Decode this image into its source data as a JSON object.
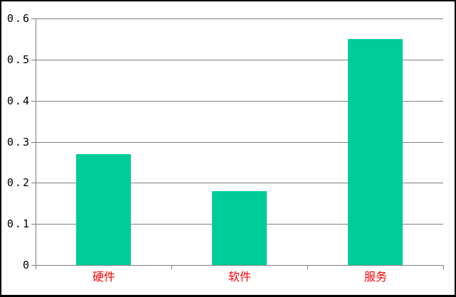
{
  "window": {
    "background_color": "#ffffff",
    "border_color": "#000000"
  },
  "chart_data": {
    "type": "bar",
    "categories": [
      "硬件",
      "软件",
      "服务"
    ],
    "values": [
      0.27,
      0.18,
      0.55
    ],
    "title": "",
    "xlabel": "",
    "ylabel": "",
    "ylim": [
      0,
      0.6
    ],
    "yticks": [
      {
        "value": 0,
        "label": "0"
      },
      {
        "value": 0.1,
        "label": "0.1"
      },
      {
        "value": 0.2,
        "label": "0.2"
      },
      {
        "value": 0.3,
        "label": "0.3"
      },
      {
        "value": 0.4,
        "label": "0.4"
      },
      {
        "value": 0.5,
        "label": "0.5"
      },
      {
        "value": 0.6,
        "label": "0.6"
      }
    ],
    "grid": true,
    "legend": false,
    "bar_color": "#00CC99",
    "gridline_color": "#808080",
    "axis_color": "#808080",
    "tick_label_color": "#000000",
    "category_label_color": "#FF0000"
  }
}
